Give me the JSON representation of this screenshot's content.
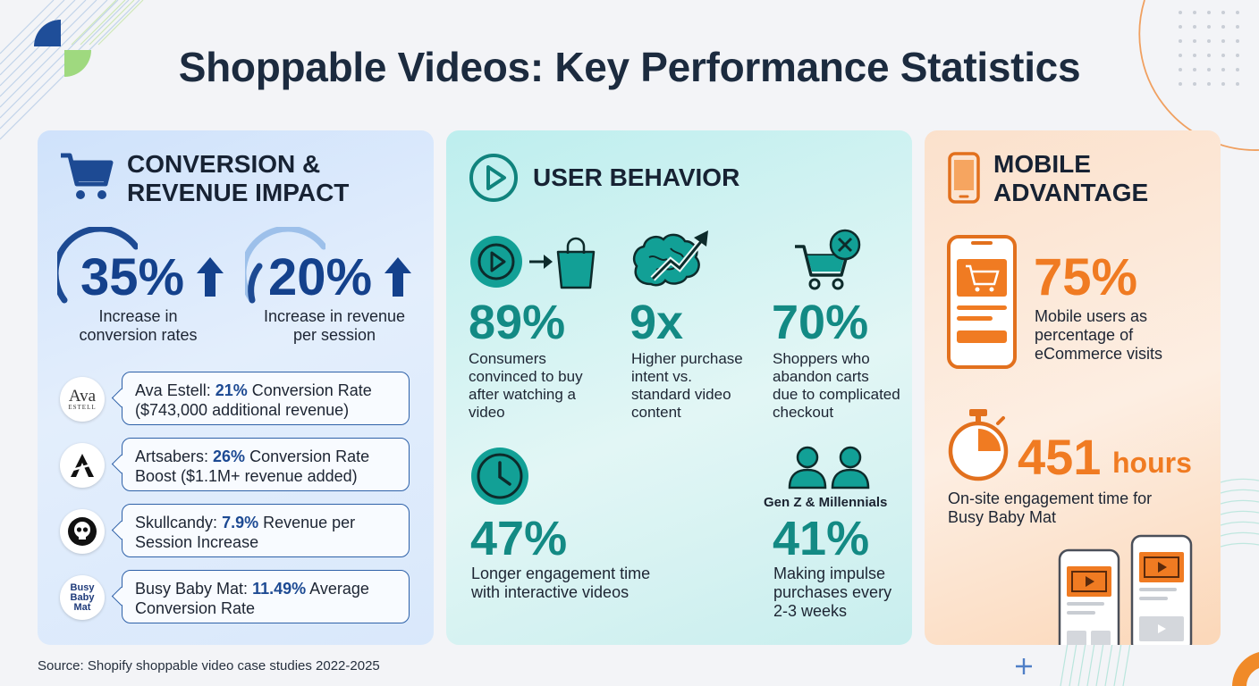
{
  "title": "Shoppable Videos: Key Performance Statistics",
  "colors": {
    "navy": "#14418c",
    "teal": "#138a84",
    "orange": "#f07b22"
  },
  "conversion": {
    "heading_line1": "CONVERSION &",
    "heading_line2": "REVENUE IMPACT",
    "icon": "shopping-cart-icon",
    "stats": [
      {
        "value": "35%",
        "line1": "Increase in",
        "line2": "conversion rates"
      },
      {
        "value": "20%",
        "line1": "Increase in revenue",
        "line2": "per session"
      }
    ],
    "cases": [
      {
        "logo": "Ava",
        "logo_sub": "ESTELL",
        "name": "Ava Estell: ",
        "metric": "21%",
        "rest": " Conversion Rate",
        "line2": "($743,000 additional revenue)"
      },
      {
        "logo": "A",
        "name": "Artsabers: ",
        "metric": "26%",
        "rest": " Conversion Rate",
        "line2": "Boost ($1.1M+ revenue added)"
      },
      {
        "logo": "skull",
        "name": "Skullcandy: ",
        "metric": "7.9%",
        "rest": " Revenue per",
        "line2": "Session Increase"
      },
      {
        "logo": "Busy Baby Mat",
        "logo_l1": "Busy",
        "logo_l2": "Baby",
        "logo_l3": "Mat",
        "name": "Busy Baby Mat: ",
        "metric": "11.49%",
        "rest": " Average",
        "line2": "Conversion Rate"
      }
    ]
  },
  "behavior": {
    "heading": "USER BEHAVIOR",
    "icon": "play-circle-icon",
    "stats": [
      {
        "value": "89%",
        "lines": [
          "Consumers",
          "convinced to buy",
          "after watching a",
          "video"
        ]
      },
      {
        "value": "9x",
        "lines": [
          "Higher purchase",
          "intent vs.",
          "standard video",
          "content"
        ]
      },
      {
        "value": "70%",
        "lines": [
          "Shoppers who",
          "abandon carts",
          "due to complicated",
          "checkout"
        ]
      },
      {
        "value": "47%",
        "lines": [
          "Longer engagement time",
          "with interactive videos"
        ]
      },
      {
        "value": "41%",
        "label": "Gen Z & Millennials",
        "lines": [
          "Making impulse",
          "purchases every",
          "2-3 weeks"
        ]
      }
    ]
  },
  "mobile": {
    "heading_line1": "MOBILE",
    "heading_line2": "ADVANTAGE",
    "icon": "smartphone-icon",
    "stat1": {
      "value": "75%",
      "lines": [
        "Mobile users as",
        "percentage of",
        "eCommerce visits"
      ]
    },
    "stat2": {
      "value": "451",
      "unit": "hours",
      "lines": [
        "On-site engagement time for",
        "Busy Baby Mat"
      ]
    }
  },
  "source": "Source: Shopify shoppable video case studies 2022-2025"
}
